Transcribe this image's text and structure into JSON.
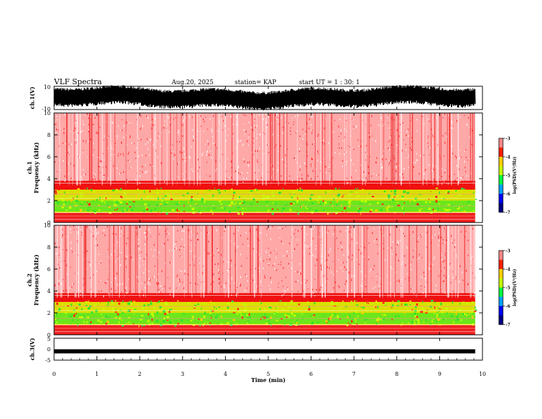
{
  "header": {
    "title": "VLF Spectra",
    "date": "Aug.20, 2025",
    "station": "station= KAP",
    "start": "start  UT =   1 : 30: 1"
  },
  "colors": {
    "spectrum": [
      "#000080",
      "#0000ff",
      "#00a0ff",
      "#00ff40",
      "#c8ff00",
      "#ffd000",
      "#ff2000",
      "#ff8888",
      "#ffffff"
    ]
  },
  "chart_data": [
    {
      "type": "line",
      "name": "ch1-waveform",
      "ylabel": "ch.1(V)",
      "ylim": [
        -10,
        10
      ],
      "yticks": [
        "10",
        "-10"
      ],
      "description_values": "noisy waveform oscillating roughly between -7 and +8 V"
    },
    {
      "type": "heatmap",
      "name": "ch1-spectrogram",
      "ylabel": "ch.1\nFrequency (kHz)",
      "ylabel_top": "ch.1",
      "ylabel_bottom": "Frequency  (kHz)",
      "ylim": [
        0,
        10
      ],
      "yticks": [
        "0",
        "2",
        "4",
        "6",
        "8",
        "10"
      ],
      "colorbar": {
        "label": "log(PSD)(V²/Hz)",
        "range": [
          -7,
          -3
        ],
        "ticks": [
          "-3",
          "-4",
          "-5",
          "-6",
          "-7"
        ]
      }
    },
    {
      "type": "heatmap",
      "name": "ch2-spectrogram",
      "ylabel_top": "ch.2",
      "ylabel_bottom": "Frequency  (kHz)",
      "ylim": [
        0,
        10
      ],
      "yticks": [
        "0",
        "2",
        "4",
        "6",
        "8",
        "10"
      ],
      "colorbar": {
        "label": "log(PSD)(V²/Hz)",
        "range": [
          -7,
          -3
        ],
        "ticks": [
          "-3",
          "-4",
          "-5",
          "-6",
          "-7"
        ]
      }
    },
    {
      "type": "line",
      "name": "ch3-waveform",
      "ylabel": "ch.3(V)",
      "ylim": [
        -5,
        5
      ],
      "yticks": [
        "5",
        "0",
        "-5"
      ],
      "level": -1
    }
  ],
  "xaxis": {
    "label": "Time  (min)",
    "range": [
      0,
      10
    ],
    "ticks": [
      "0",
      "1",
      "2",
      "3",
      "4",
      "5",
      "6",
      "7",
      "8",
      "9",
      "10"
    ],
    "data_end": 9.83
  }
}
